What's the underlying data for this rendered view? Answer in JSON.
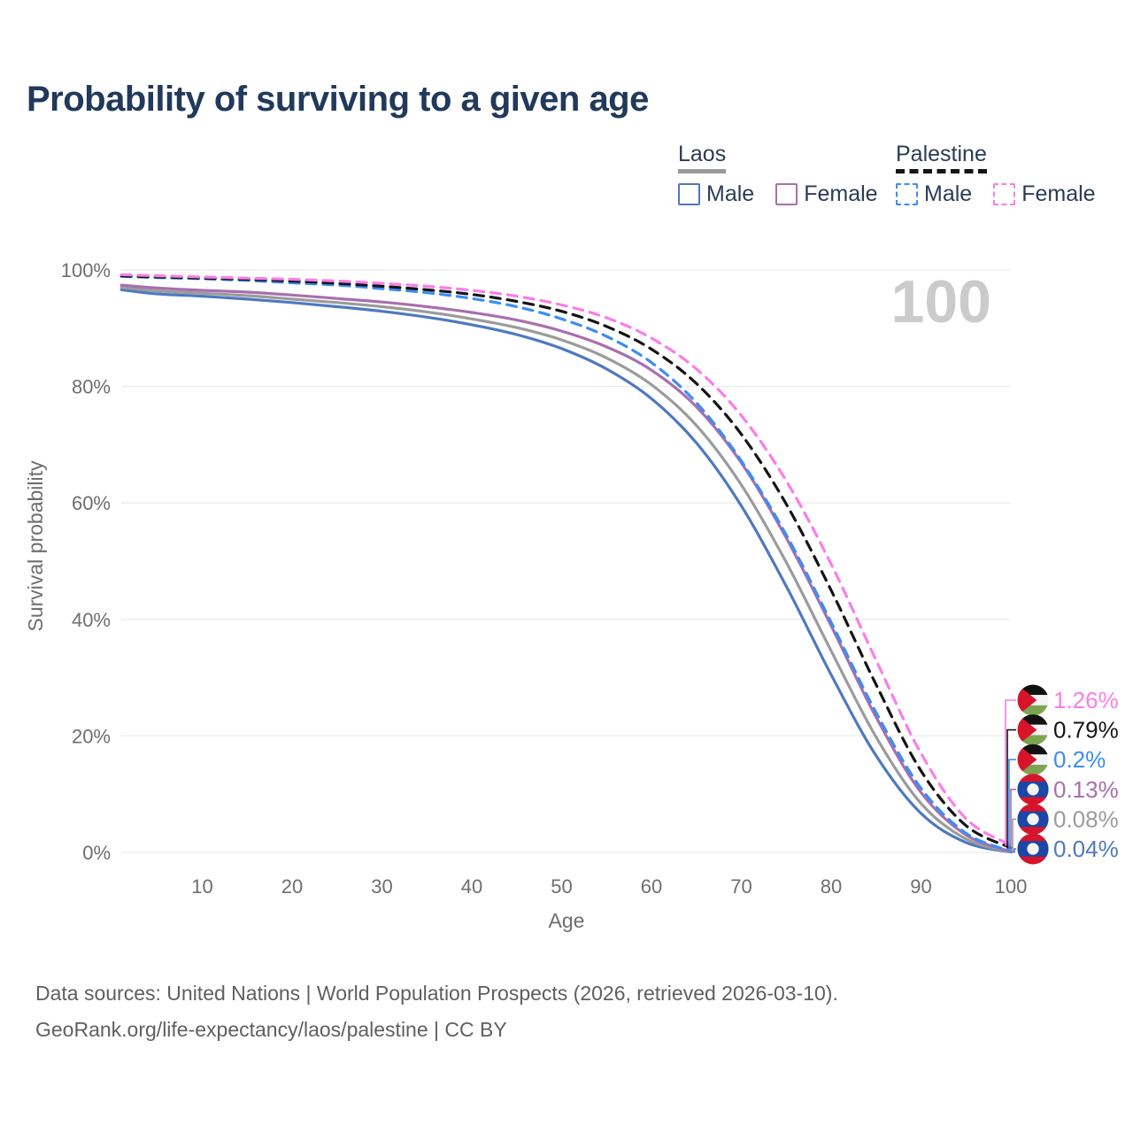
{
  "title": "Probability of surviving to a given age",
  "watermark": "100",
  "colors": {
    "title": "#21395a",
    "axis_text": "#6e6e6e",
    "gridline": "#ebebeb",
    "watermark": "#cbcbcb",
    "legend_text": "#2a3c55",
    "laos_underline": "#9a9a9a",
    "palestine_underline": "#141414"
  },
  "legend": {
    "groups": [
      {
        "name": "Laos",
        "line_style": "solid",
        "underline_color": "#9a9a9a",
        "items": [
          {
            "label": "Male",
            "color": "#4e79c0",
            "dashed": false
          },
          {
            "label": "Female",
            "color": "#a86fae",
            "dashed": false
          }
        ]
      },
      {
        "name": "Palestine",
        "line_style": "dashed",
        "underline_color": "#141414",
        "items": [
          {
            "label": "Male",
            "color": "#3c8df3",
            "dashed": true
          },
          {
            "label": "Female",
            "color": "#fb7de8",
            "dashed": true
          }
        ]
      }
    ]
  },
  "chart_data": {
    "type": "line",
    "title": "Probability of surviving to a given age",
    "xlabel": "Age",
    "ylabel": "Survival probability",
    "xlim": [
      0,
      100
    ],
    "ylim": [
      0,
      100
    ],
    "grid": "horizontal",
    "x_ticks": [
      10,
      20,
      30,
      40,
      50,
      60,
      70,
      80,
      90,
      100
    ],
    "y_ticks": [
      {
        "value": 0,
        "label": "0%"
      },
      {
        "value": 20,
        "label": "20%"
      },
      {
        "value": 40,
        "label": "40%"
      },
      {
        "value": 60,
        "label": "60%"
      },
      {
        "value": 80,
        "label": "80%"
      },
      {
        "value": 100,
        "label": "100%"
      }
    ],
    "x": [
      1,
      5,
      10,
      15,
      20,
      25,
      30,
      35,
      40,
      45,
      50,
      55,
      60,
      65,
      70,
      75,
      80,
      85,
      90,
      95,
      100
    ],
    "series": [
      {
        "name": "Laos Male",
        "country": "laos",
        "sex": "male",
        "color": "#4e79c0",
        "dashed": false,
        "end_label": "0.04%",
        "values": [
          96.6,
          95.9,
          95.5,
          95.0,
          94.4,
          93.7,
          92.9,
          91.9,
          90.6,
          88.9,
          86.5,
          83.0,
          77.9,
          70.3,
          59.5,
          45.7,
          30.5,
          16.6,
          6.7,
          1.7,
          0.04
        ]
      },
      {
        "name": "Laos Both sexes",
        "country": "laos",
        "sex": "both",
        "color": "#9b9b9b",
        "dashed": false,
        "end_label": "0.08%",
        "values": [
          97.0,
          96.4,
          96.0,
          95.6,
          95.0,
          94.4,
          93.7,
          92.8,
          91.6,
          90.1,
          88.0,
          84.9,
          80.3,
          73.3,
          63.1,
          49.8,
          34.6,
          19.8,
          8.4,
          2.3,
          0.08
        ]
      },
      {
        "name": "Laos Female",
        "country": "laos",
        "sex": "female",
        "color": "#a86fae",
        "dashed": false,
        "end_label": "0.13%",
        "values": [
          97.4,
          96.9,
          96.5,
          96.2,
          95.7,
          95.1,
          94.5,
          93.7,
          92.7,
          91.4,
          89.5,
          86.8,
          82.8,
          76.5,
          66.9,
          54.0,
          38.9,
          23.2,
          10.3,
          3.0,
          0.13
        ]
      },
      {
        "name": "Palestine Male",
        "country": "palestine",
        "sex": "male",
        "color": "#3c8df3",
        "dashed": true,
        "end_label": "0.2%",
        "values": [
          98.9,
          98.7,
          98.5,
          98.2,
          97.8,
          97.4,
          96.8,
          96.1,
          95.1,
          93.7,
          91.6,
          88.6,
          84.1,
          77.2,
          67.2,
          54.5,
          39.5,
          24.0,
          11.0,
          3.3,
          0.2
        ]
      },
      {
        "name": "Palestine Both sexes",
        "country": "palestine",
        "sex": "both",
        "color": "#141414",
        "dashed": true,
        "end_label": "0.79%",
        "values": [
          99.0,
          98.8,
          98.6,
          98.4,
          98.1,
          97.7,
          97.2,
          96.6,
          95.8,
          94.6,
          92.9,
          90.3,
          86.4,
          80.5,
          71.8,
          59.8,
          45.0,
          28.8,
          14.0,
          4.6,
          0.79
        ]
      },
      {
        "name": "Palestine Female",
        "country": "palestine",
        "sex": "female",
        "color": "#fb7de8",
        "dashed": true,
        "end_label": "1.26%",
        "values": [
          99.2,
          99.0,
          98.8,
          98.6,
          98.4,
          98.1,
          97.7,
          97.2,
          96.5,
          95.5,
          94.0,
          91.8,
          88.3,
          83.0,
          75.0,
          63.8,
          49.5,
          33.0,
          17.0,
          5.8,
          1.26
        ]
      }
    ],
    "annotations": {
      "watermark_age": "100"
    }
  },
  "footer": {
    "line1": "Data sources: United Nations | World Population Prospects (2026, retrieved 2026-03-10).",
    "line2": "GeoRank.org/life-expectancy/laos/palestine | CC BY"
  }
}
